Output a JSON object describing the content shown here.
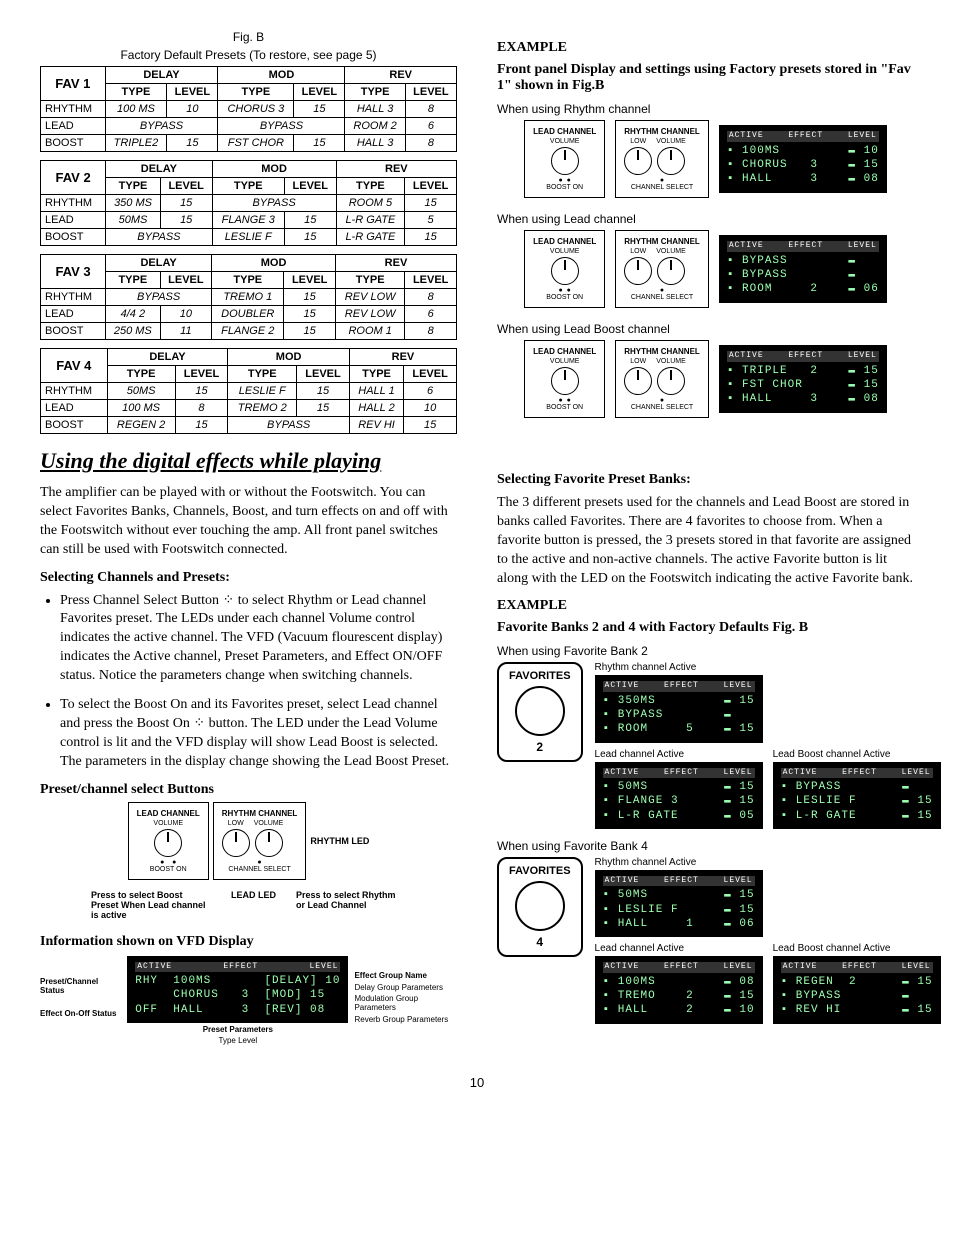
{
  "fig_caption_line1": "Fig. B",
  "fig_caption_line2": "Factory Default Presets (To restore, see page 5)",
  "group_headers": [
    "DELAY",
    "MOD",
    "REV"
  ],
  "sub_headers": [
    "TYPE",
    "LEVEL"
  ],
  "row_names": [
    "RHYTHM",
    "LEAD",
    "BOOST"
  ],
  "favs": [
    {
      "label": "FAV 1",
      "rows": [
        [
          "100 MS",
          "10",
          "CHORUS 3",
          "15",
          "HALL 3",
          "8"
        ],
        [
          "BYPASS",
          "",
          "BYPASS",
          "",
          "ROOM 2",
          "6"
        ],
        [
          "TRIPLE2",
          "15",
          "FST CHOR",
          "15",
          "HALL 3",
          "8"
        ]
      ]
    },
    {
      "label": "FAV 2",
      "rows": [
        [
          "350 MS",
          "15",
          "BYPASS",
          "",
          "ROOM 5",
          "15"
        ],
        [
          "50MS",
          "15",
          "FLANGE 3",
          "15",
          "L-R GATE",
          "5"
        ],
        [
          "BYPASS",
          "",
          "LESLIE F",
          "15",
          "L-R GATE",
          "15"
        ]
      ]
    },
    {
      "label": "FAV 3",
      "rows": [
        [
          "BYPASS",
          "",
          "TREMO 1",
          "15",
          "REV LOW",
          "8"
        ],
        [
          "4/4 2",
          "10",
          "DOUBLER",
          "15",
          "REV LOW",
          "6"
        ],
        [
          "250 MS",
          "11",
          "FLANGE  2",
          "15",
          "ROOM 1",
          "8"
        ]
      ]
    },
    {
      "label": "FAV 4",
      "rows": [
        [
          "50MS",
          "15",
          "LESLIE F",
          "15",
          "HALL 1",
          "6"
        ],
        [
          "100 MS",
          "8",
          "TREMO 2",
          "15",
          "HALL 2",
          "10"
        ],
        [
          "REGEN 2",
          "15",
          "BYPASS",
          "",
          "REV HI",
          "15"
        ]
      ]
    }
  ],
  "section_title": "Using the digital effects while playing",
  "intro_para": "The amplifier can be played with or without the Footswitch.  You can select Favorites Banks, Channels, Boost, and turn effects on and off with the Footswitch without ever touching the amp. All front panel switches can still be used with Footswitch connected.",
  "sel_ch_hdr": "Selecting Channels and Presets:",
  "bullet1": "Press Channel Select Button ⁘ to select Rhythm or Lead channel Favorites preset. The LEDs under each channel Volume control indicates the active channel. The VFD  (Vacuum flourescent display) indicates the Active channel, Preset Parameters, and Effect ON/OFF status. Notice the parameters change when switching channels.",
  "bullet2": "To select the Boost On and its Favorites preset, select Lead channel and press the Boost On ⁘ button. The LED under the Lead Volume control is lit and the VFD display will show Lead Boost is selected. The parameters in the display change showing the Lead Boost Preset.",
  "preset_btn_hdr": "Preset/channel select Buttons",
  "knob_labels": {
    "lead": "LEAD CHANNEL",
    "rhythm": "RHYTHM CHANNEL",
    "volume": "VOLUME",
    "low": "LOW",
    "boost": "BOOST ON",
    "chsel": "CHANNEL SELECT"
  },
  "preset_diag_labels": {
    "rhythm_led": "RHYTHM LED",
    "lead_led": "LEAD LED",
    "press_boost": "Press to select Boost Preset When Lead channel is active",
    "press_ch": "Press to select Rhythm or Lead Channel"
  },
  "vfd_info_hdr": "Information shown on VFD Display",
  "vfd_diag": {
    "top_labels": [
      "ACTIVE",
      "EFFECT",
      "LEVEL"
    ],
    "rows": [
      {
        "left": "RHY",
        "mid": "100MS",
        "badge": "DELAY",
        "lvl": "10"
      },
      {
        "left": "",
        "mid": "CHORUS   3",
        "badge": "MOD",
        "lvl": "15"
      },
      {
        "left": "OFF",
        "mid": "HALL     3",
        "badge": "REV",
        "lvl": "08"
      }
    ],
    "left_labels": [
      "Preset/Channel Status",
      "Effect On-Off Status"
    ],
    "right_labels": [
      "Effect Group Name",
      "Delay Group Parameters",
      "Modulation Group Parameters",
      "Reverb Group Parameters"
    ],
    "bottom": "Preset Parameters",
    "bottom2": "Type            Level"
  },
  "example_hdr": "EXAMPLE",
  "example_sub": "Front panel Display and settings using  Factory presets stored in \"Fav 1\" shown in Fig.B",
  "ex1_cap": "When using Rhythm channel",
  "ex1_vfd": [
    "100MS         ▬ 10",
    "CHORUS   3    ▬ 15",
    "HALL     3    ▬ 08"
  ],
  "ex2_cap": "When using Lead channel",
  "ex2_vfd": [
    "BYPASS        ▬   ",
    "BYPASS        ▬   ",
    "ROOM     2    ▬ 06"
  ],
  "ex3_cap": "When using Lead Boost channel",
  "ex3_vfd": [
    "TRIPLE   2    ▬ 15",
    "FST CHOR      ▬ 15",
    "HALL     3    ▬ 08"
  ],
  "sel_fav_hdr": "Selecting Favorite Preset Banks:",
  "sel_fav_para": "The 3 different presets used for the channels and Lead Boost are stored in banks called Favorites. There are 4 favorites to choose from. When a favorite button is pressed, the 3 presets stored in that favorite are assigned to the active and non-active channels. The active Favorite button is lit along with the LED on the Footswitch indicating the active Favorite bank.",
  "example2_hdr": "EXAMPLE",
  "example2_sub": "Favorite Banks 2 and 4 with Factory Defaults Fig. B",
  "fb2_cap": "When using Favorite Bank 2",
  "fb2": {
    "fav_label": "FAVORITES",
    "num": "2",
    "rhy_label": "Rhythm channel Active",
    "rhy_vfd": [
      "350MS         ▬ 15",
      "BYPASS        ▬   ",
      "ROOM     5    ▬ 15"
    ],
    "lead_label": "Lead channel Active",
    "lead_vfd": [
      "50MS          ▬ 15",
      "FLANGE 3      ▬ 15",
      "L-R GATE      ▬ 05"
    ],
    "boost_label": "Lead Boost channel Active",
    "boost_vfd": [
      "BYPASS        ▬   ",
      "LESLIE F      ▬ 15",
      "L-R GATE      ▬ 15"
    ]
  },
  "fb4_cap": "When using Favorite Bank 4",
  "fb4": {
    "fav_label": "FAVORITES",
    "num": "4",
    "rhy_label": "Rhythm channel Active",
    "rhy_vfd": [
      "50MS          ▬ 15",
      "LESLIE F      ▬ 15",
      "HALL     1    ▬ 06"
    ],
    "lead_label": "Lead channel Active",
    "lead_vfd": [
      "100MS         ▬ 08",
      "TREMO    2    ▬ 15",
      "HALL     2    ▬ 10"
    ],
    "boost_label": "Lead Boost channel Active",
    "boost_vfd": [
      "REGEN  2      ▬ 15",
      "BYPASS        ▬   ",
      "REV HI        ▬ 15"
    ]
  },
  "page_num": "10",
  "vfd_header_labels": [
    "ACTIVE",
    "EFFECT",
    "LEVEL"
  ]
}
